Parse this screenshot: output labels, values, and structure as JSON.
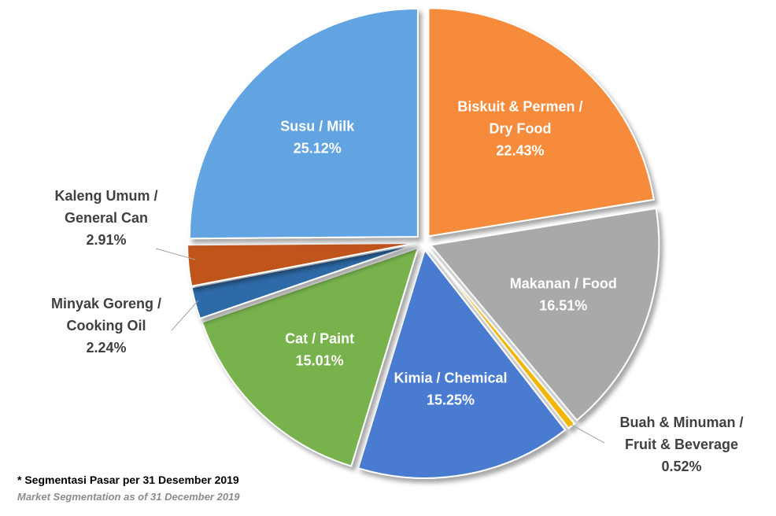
{
  "chart_data": {
    "type": "pie",
    "slices": [
      {
        "lines": [
          "Biskuit & Permen /",
          "Dry Food"
        ],
        "value_label": "22.43%",
        "value": 22.43,
        "color": "#f58b3b",
        "placement": "inside"
      },
      {
        "lines": [
          "Makanan / Food"
        ],
        "value_label": "16.51%",
        "value": 16.51,
        "color": "#a9a9a9",
        "placement": "inside"
      },
      {
        "lines": [
          "Buah & Minuman /",
          "Fruit & Beverage"
        ],
        "value_label": "0.52%",
        "value": 0.52,
        "color": "#f2b705",
        "placement": "outside"
      },
      {
        "lines": [
          "Kimia / Chemical"
        ],
        "value_label": "15.25%",
        "value": 15.25,
        "color": "#4a7bd0",
        "placement": "inside"
      },
      {
        "lines": [
          "Cat / Paint"
        ],
        "value_label": "15.01%",
        "value": 15.01,
        "color": "#77b24e",
        "placement": "inside"
      },
      {
        "lines": [
          "Minyak Goreng /",
          "Cooking Oil"
        ],
        "value_label": "2.24%",
        "value": 2.24,
        "color": "#2e6aa8",
        "placement": "outside"
      },
      {
        "lines": [
          "Kaleng Umum /",
          "General Can"
        ],
        "value_label": "2.91%",
        "value": 2.91,
        "color": "#c0541a",
        "placement": "outside"
      },
      {
        "lines": [
          "Susu / Milk"
        ],
        "value_label": "25.12%",
        "value": 25.12,
        "color": "#62a3e2",
        "placement": "inside"
      }
    ]
  },
  "footnote": {
    "main": "* Segmentasi Pasar per 31 Desember 2019",
    "sub": "Market Segmentation as of 31 December 2019"
  }
}
